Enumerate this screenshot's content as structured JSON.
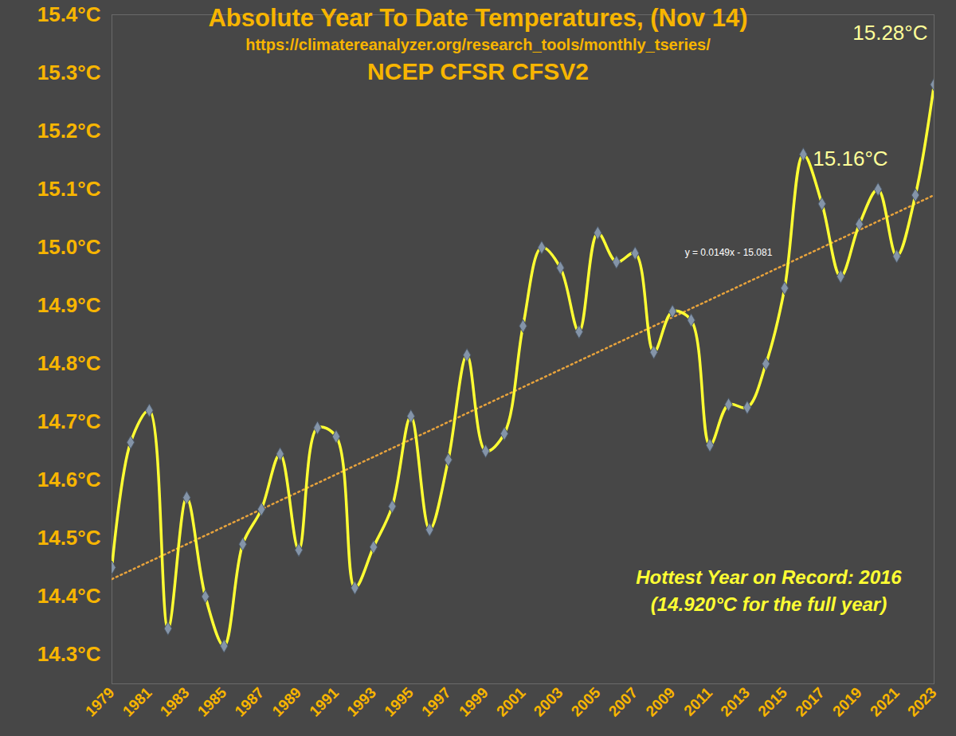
{
  "chart_data": {
    "type": "line",
    "title": "Absolute Year To Date Temperatures, (Nov 14)",
    "subtitle": [
      "https://climatereanalyzer.org/research_tools/monthly_tseries/",
      "NCEP CFSR CFSV2"
    ],
    "x": [
      1979,
      1980,
      1981,
      1982,
      1983,
      1984,
      1985,
      1986,
      1987,
      1988,
      1989,
      1990,
      1991,
      1992,
      1993,
      1994,
      1995,
      1996,
      1997,
      1998,
      1999,
      2000,
      2001,
      2002,
      2003,
      2004,
      2005,
      2006,
      2007,
      2008,
      2009,
      2010,
      2011,
      2012,
      2013,
      2014,
      2015,
      2016,
      2017,
      2018,
      2019,
      2020,
      2021,
      2022,
      2023
    ],
    "values": [
      14.45,
      14.665,
      14.72,
      14.345,
      14.57,
      14.4,
      14.315,
      14.49,
      14.55,
      14.645,
      14.48,
      14.69,
      14.675,
      14.415,
      14.485,
      14.555,
      14.71,
      14.515,
      14.635,
      14.815,
      14.65,
      14.68,
      14.865,
      15.0,
      14.965,
      14.855,
      15.025,
      14.975,
      14.99,
      14.82,
      14.89,
      14.875,
      14.66,
      14.73,
      14.725,
      14.8,
      14.93,
      15.16,
      15.075,
      14.95,
      15.04,
      15.1,
      14.985,
      15.09,
      15.28
    ],
    "color": "#ffff33",
    "marker": "diamond",
    "line_style": "solid",
    "trendline": {
      "x": [
        1979,
        2023
      ],
      "values": [
        14.43,
        15.09
      ],
      "label": "y = 0.0149x - 15.081",
      "color": "#e8a33c",
      "line_style": "dotted"
    },
    "annotations": [
      {
        "text": "15.28°C",
        "x": 2023,
        "y": 15.28
      },
      {
        "text": "15.16°C",
        "x": 2016,
        "y": 15.16
      },
      {
        "text": "Hottest Year on Record: 2016"
      },
      {
        "text": "(14.920°C for the full year)"
      }
    ],
    "xlim": [
      1979,
      2023
    ],
    "xticks": [
      1979,
      1981,
      1983,
      1985,
      1987,
      1989,
      1991,
      1993,
      1995,
      1997,
      1999,
      2001,
      2003,
      2005,
      2007,
      2009,
      2011,
      2013,
      2015,
      2017,
      2019,
      2021,
      2023
    ],
    "ylim": [
      14.25,
      15.4
    ],
    "yticks": [
      {
        "value": 14.3,
        "label": "14.3°C"
      },
      {
        "value": 14.4,
        "label": "14.4°C"
      },
      {
        "value": 14.5,
        "label": "14.5°C"
      },
      {
        "value": 14.6,
        "label": "14.6°C"
      },
      {
        "value": 14.7,
        "label": "14.7°C"
      },
      {
        "value": 14.8,
        "label": "14.8°C"
      },
      {
        "value": 14.9,
        "label": "14.9°C"
      },
      {
        "value": 15.0,
        "label": "15.0°C"
      },
      {
        "value": 15.1,
        "label": "15.1°C"
      },
      {
        "value": 15.2,
        "label": "15.2°C"
      },
      {
        "value": 15.3,
        "label": "15.3°C"
      },
      {
        "value": 15.4,
        "label": "15.4°C"
      }
    ],
    "grid": false
  }
}
